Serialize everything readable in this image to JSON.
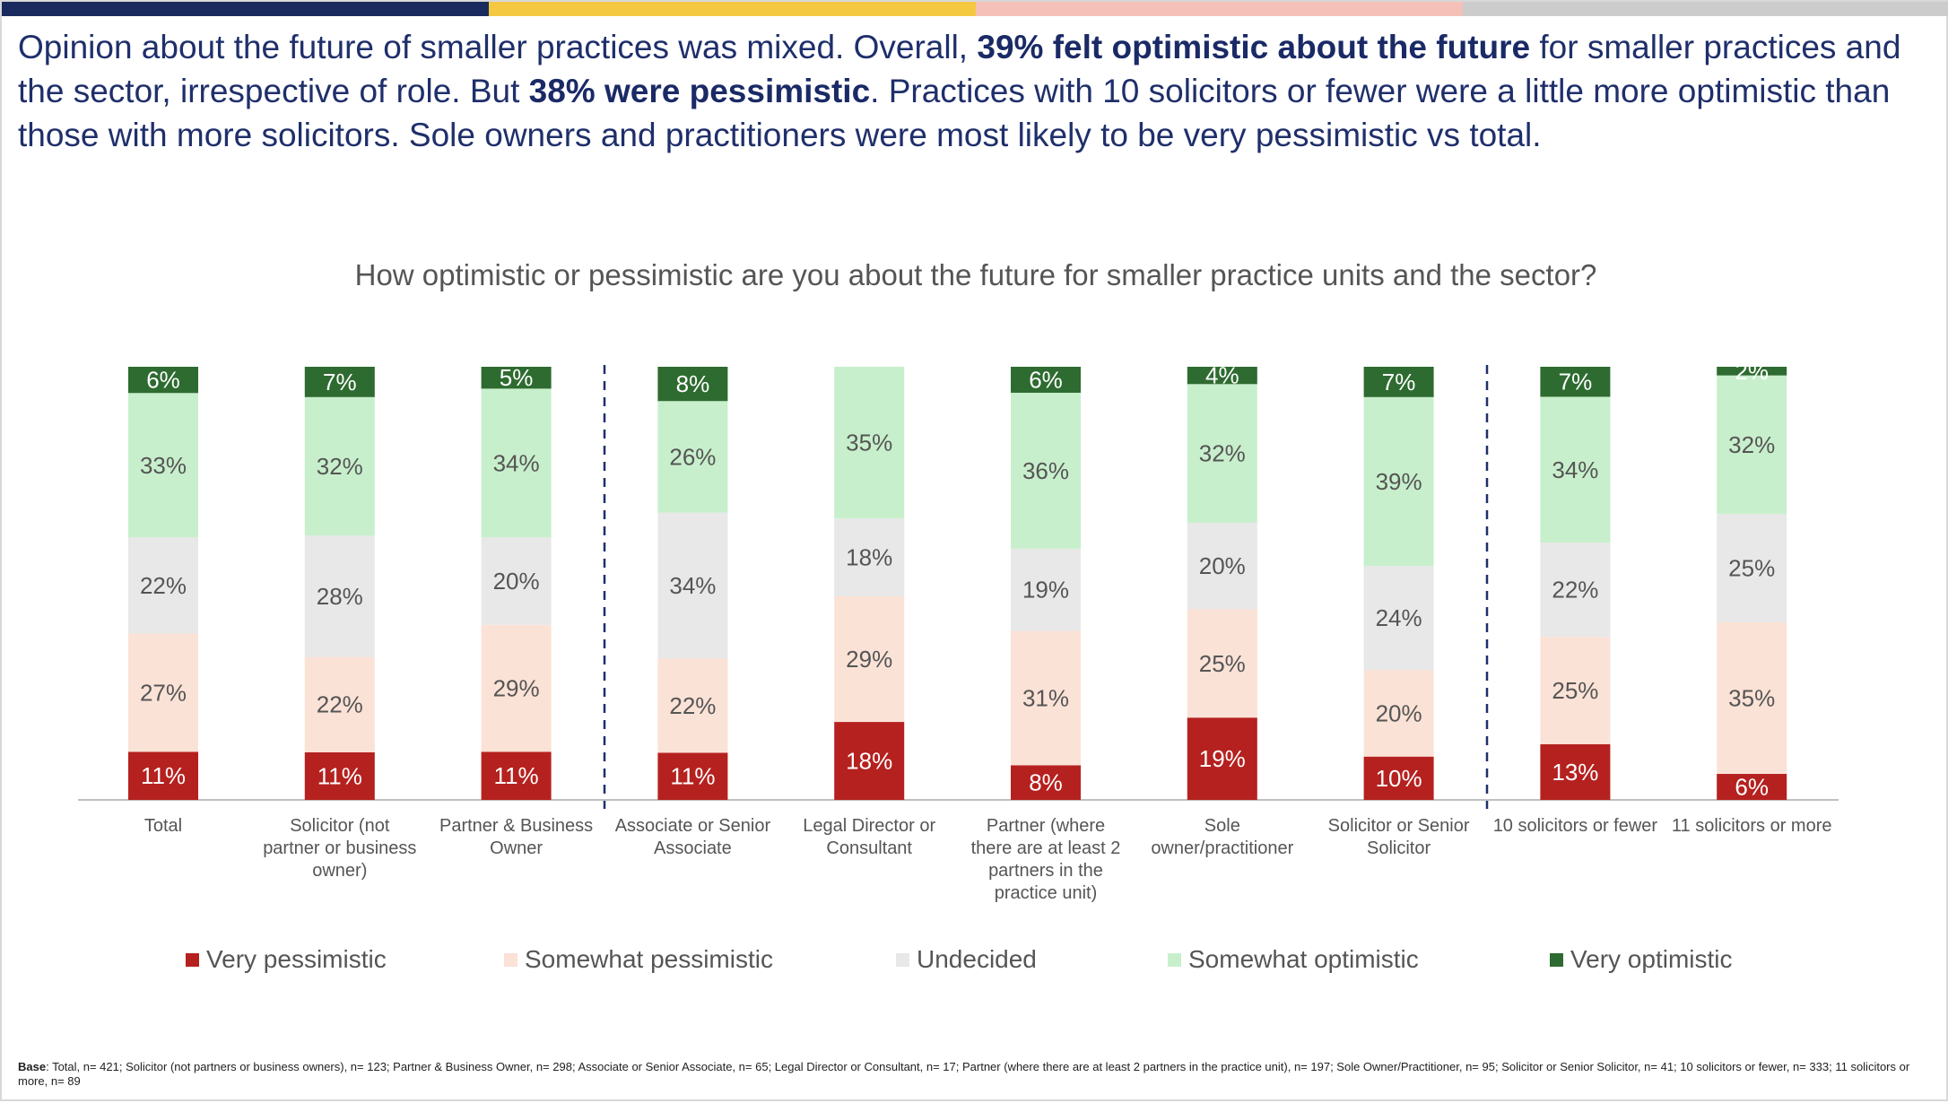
{
  "headline": {
    "p1": "Opinion about the future of smaller practices was mixed. Overall, ",
    "b1": "39% felt optimistic about the future",
    "p2": " for smaller practices and the sector, irrespective of role. But ",
    "b2": "38% were pessimistic",
    "p3": ". Practices with 10 solicitors or fewer were a little more optimistic than those with more solicitors. Sole owners and practitioners were most likely to be very pessimistic vs total."
  },
  "top_bar_colors": [
    "#1b2a5e",
    "#f5c842",
    "#f4c0b8",
    "#cccccc"
  ],
  "base_note": {
    "label": "Base",
    "text": ": Total, n= 421; Solicitor (not partners or business owners), n= 123; Partner & Business Owner, n= 298; Associate or Senior Associate, n= 65; Legal Director or Consultant, n= 17; Partner (where there are at least 2 partners in the practice unit), n= 197; Sole Owner/Practitioner, n= 95; Solicitor or Senior Solicitor, n= 41; 10 solicitors or fewer, n= 333; 11 solicitors or more, n= 89"
  },
  "chart_data": {
    "type": "bar",
    "stacked": true,
    "normalized": true,
    "title": "How optimistic or pessimistic are you about the future for smaller practice units and the sector?",
    "legend_position": "bottom",
    "grid": false,
    "categories": [
      [
        "Total"
      ],
      [
        "Solicitor (not",
        "partner or business",
        "owner)"
      ],
      [
        "Partner & Business",
        "Owner"
      ],
      [
        "Associate or Senior",
        "Associate"
      ],
      [
        "Legal Director or",
        "Consultant"
      ],
      [
        "Partner (where",
        "there are at least 2",
        "partners in the",
        "practice unit)"
      ],
      [
        "Sole",
        "owner/practitioner"
      ],
      [
        "Solicitor or Senior",
        "Solicitor"
      ],
      [
        "10 solicitors or fewer"
      ],
      [
        "11 solicitors or more"
      ]
    ],
    "group_separators_after": [
      2,
      7
    ],
    "series": [
      {
        "name": "Very pessimistic",
        "color": "#b5211f",
        "label_color": "#ffffff",
        "values": [
          11,
          11,
          11,
          11,
          18,
          8,
          19,
          10,
          13,
          6
        ],
        "labels": [
          "11%",
          "11%",
          "11%",
          "11%",
          "18%",
          "8%",
          "19%",
          "10%",
          "13%",
          "6%"
        ]
      },
      {
        "name": "Somewhat pessimistic",
        "color": "#fbe2d6",
        "label_color": "#555555",
        "values": [
          27,
          22,
          29,
          22,
          29,
          31,
          25,
          20,
          25,
          35
        ],
        "labels": [
          "27%",
          "22%",
          "29%",
          "22%",
          "29%",
          "31%",
          "25%",
          "20%",
          "25%",
          "35%"
        ]
      },
      {
        "name": "Undecided",
        "color": "#e8e8e8",
        "label_color": "#555555",
        "values": [
          22,
          28,
          20,
          34,
          18,
          19,
          20,
          24,
          22,
          25
        ],
        "labels": [
          "22%",
          "28%",
          "20%",
          "34%",
          "18%",
          "19%",
          "20%",
          "24%",
          "22%",
          "25%"
        ]
      },
      {
        "name": "Somewhat optimistic",
        "color": "#c8efcc",
        "label_color": "#555555",
        "values": [
          33,
          32,
          34,
          26,
          35,
          36,
          32,
          39,
          34,
          32
        ],
        "labels": [
          "33%",
          "32%",
          "34%",
          "26%",
          "35%",
          "36%",
          "32%",
          "39%",
          "34%",
          "32%"
        ]
      },
      {
        "name": "Very optimistic",
        "color": "#2e6b30",
        "label_color": "#ffffff",
        "values": [
          6,
          7,
          5,
          8,
          0,
          6,
          4,
          7,
          7,
          2
        ],
        "labels": [
          "6%",
          "7%",
          "5%",
          "8%",
          "",
          "6%",
          "4%",
          "7%",
          "7%",
          "2%"
        ]
      }
    ]
  }
}
